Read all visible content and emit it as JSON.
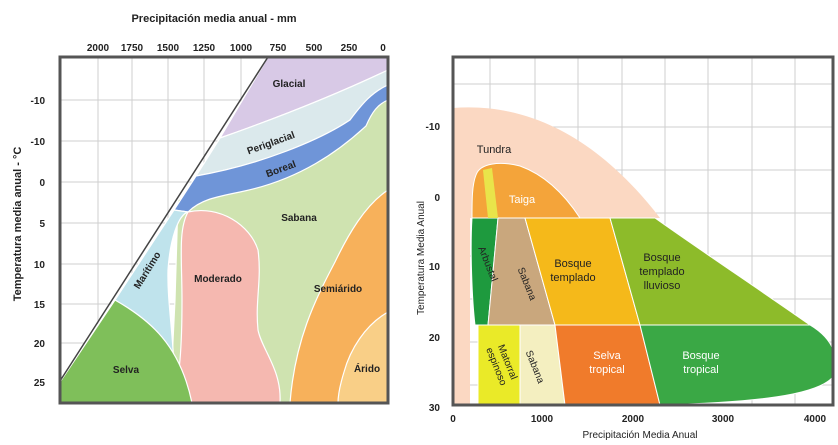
{
  "left": {
    "top_title": "Precipitación media anual - mm",
    "left_title": "Temperatura media anual - °C",
    "x_ticks": [
      "2000",
      "1750",
      "1500",
      "1250",
      "1000",
      "750",
      "500",
      "250",
      "0"
    ],
    "y_ticks": [
      "-10",
      "-10",
      "0",
      "5",
      "10",
      "15",
      "20",
      "25"
    ],
    "regions": {
      "glacial": "Glacial",
      "periglacial": "Periglacial",
      "boreal": "Boreal",
      "sabana": "Sabana",
      "maritimo": "Marítimo",
      "moderado": "Moderado",
      "semiarido": "Semiárido",
      "arido": "Árido",
      "selva": "Selva"
    }
  },
  "right": {
    "x_title": "Precipitación Media Anual",
    "y_title": "Temperatura Media Anual",
    "x_ticks": [
      "0",
      "1000",
      "2000",
      "3000",
      "4000"
    ],
    "y_ticks": [
      "-10",
      "0",
      "10",
      "20",
      "30"
    ],
    "biomes": {
      "tundra": "Tundra",
      "taiga": "Taiga",
      "arbustal": "Arbustal",
      "sabana_top": "Sabana",
      "bosque_templado": "Bosque templado",
      "bosque_templado_lluvioso": "Bosque templado lluvioso",
      "matorral_espinoso": "Matorral espinoso",
      "sabana_bottom": "Sabana",
      "selva_tropical": "Selva tropical",
      "bosque_tropical": "Bosque tropical"
    }
  },
  "colors": {
    "glacial": "#d8c9e6",
    "periglacial": "#dbe9ec",
    "boreal": "#6f95d8",
    "sabana_left": "#cfe3b0",
    "maritimo": "#bfe3ec",
    "moderado": "#f5b8b0",
    "semiarido": "#f7b15b",
    "arido": "#f9cf87",
    "selva_left": "#7fbf5a",
    "tundra": "#fbd8c2",
    "taiga": "#f4a43a",
    "arbustal": "#1e9a3e",
    "sabana_tan": "#c9a77d",
    "bosque_templado": "#f5b91a",
    "bosque_lluvioso": "#8dbb2a",
    "matorral": "#eaea28",
    "sabana_cream": "#f4efc0",
    "selva_tropical": "#f07b2b",
    "bosque_tropical": "#3aa845"
  }
}
